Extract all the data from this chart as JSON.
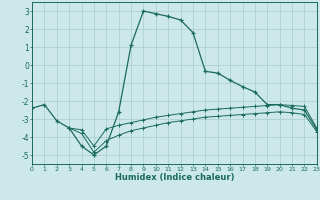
{
  "xlabel": "Humidex (Indice chaleur)",
  "xlim": [
    0,
    23
  ],
  "ylim": [
    -5.5,
    3.5
  ],
  "yticks": [
    -5,
    -4,
    -3,
    -2,
    -1,
    0,
    1,
    2,
    3
  ],
  "xticks": [
    0,
    1,
    2,
    3,
    4,
    5,
    6,
    7,
    8,
    9,
    10,
    11,
    12,
    13,
    14,
    15,
    16,
    17,
    18,
    19,
    20,
    21,
    22,
    23
  ],
  "bg_color": "#cce8e8",
  "grid_color": "#aacccc",
  "line_color": "#1a6b5a",
  "curve1_x": [
    0,
    1,
    2,
    3,
    4,
    5,
    6,
    7,
    8,
    9,
    10,
    11,
    12,
    13,
    14,
    15,
    16,
    17,
    18,
    19,
    20,
    21,
    22,
    23
  ],
  "curve1_y": [
    -2.4,
    -2.2,
    -3.1,
    -3.5,
    -4.5,
    -5.0,
    -4.5,
    -2.6,
    1.1,
    3.0,
    2.85,
    2.7,
    2.5,
    1.8,
    -0.35,
    -0.45,
    -0.85,
    -1.2,
    -1.5,
    -2.2,
    -2.2,
    -2.4,
    -2.5,
    -3.6
  ],
  "curve2_x": [
    3,
    4,
    5,
    6,
    7,
    8,
    9,
    10,
    11,
    12,
    13,
    14,
    15,
    16,
    17,
    18,
    19,
    20,
    21,
    22,
    23
  ],
  "curve2_y": [
    -3.5,
    -3.6,
    -4.5,
    -3.55,
    -3.35,
    -3.2,
    -3.05,
    -2.9,
    -2.8,
    -2.7,
    -2.6,
    -2.5,
    -2.45,
    -2.4,
    -2.35,
    -2.3,
    -2.25,
    -2.2,
    -2.25,
    -2.3,
    -3.5
  ],
  "curve3_x": [
    3,
    4,
    5,
    6,
    7,
    8,
    9,
    10,
    11,
    12,
    13,
    14,
    15,
    16,
    17,
    18,
    19,
    20,
    21,
    22,
    23
  ],
  "curve3_y": [
    -3.5,
    -3.8,
    -4.85,
    -4.2,
    -3.9,
    -3.65,
    -3.5,
    -3.35,
    -3.2,
    -3.1,
    -3.0,
    -2.9,
    -2.85,
    -2.8,
    -2.75,
    -2.7,
    -2.65,
    -2.6,
    -2.65,
    -2.75,
    -3.7
  ]
}
